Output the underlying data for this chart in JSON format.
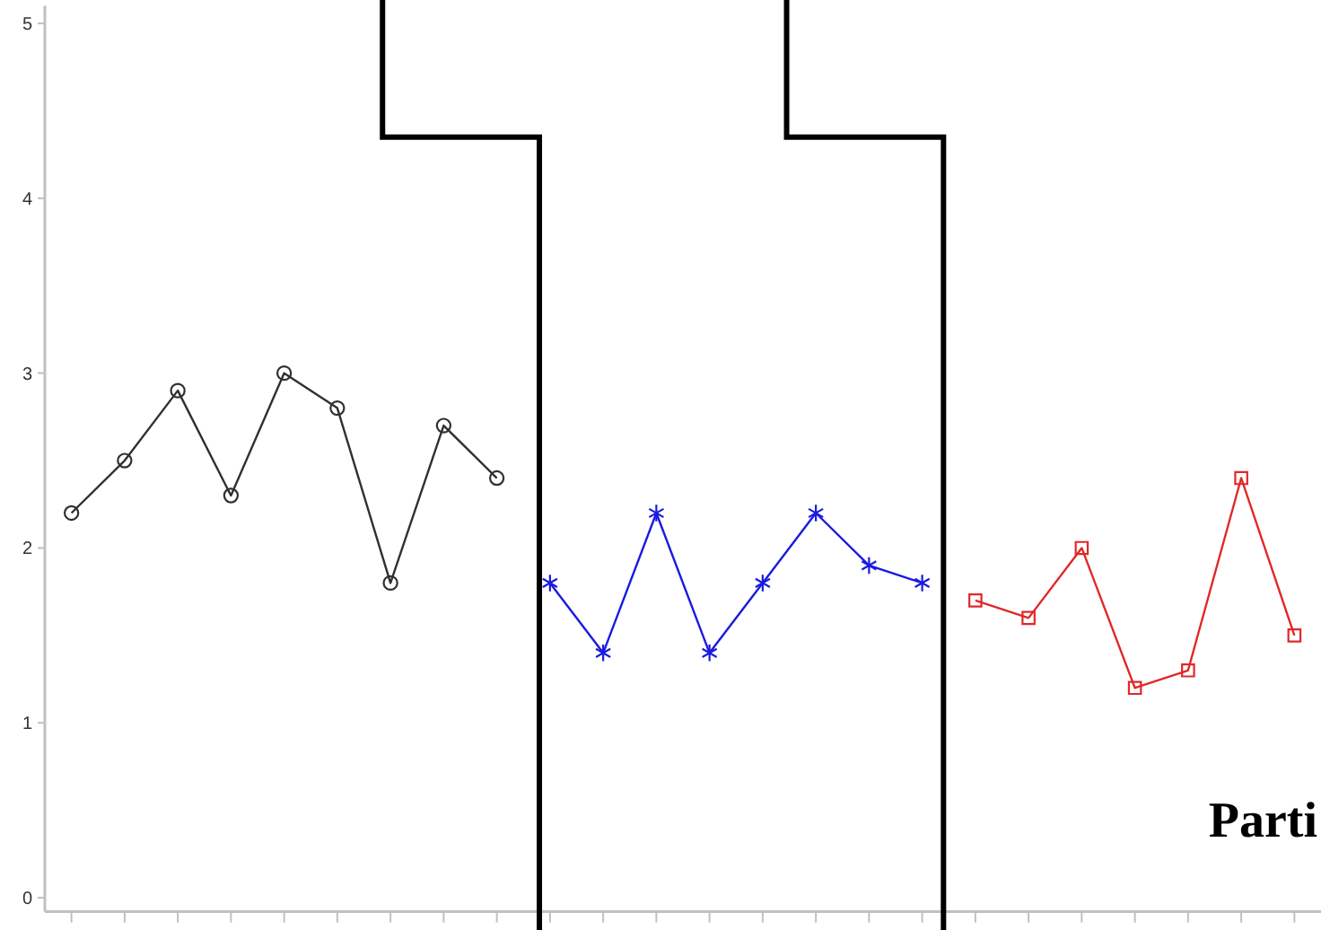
{
  "chart_data": {
    "type": "line",
    "categories": [
      null,
      null,
      null,
      null,
      null,
      null,
      null,
      null,
      null,
      null,
      null,
      null,
      null,
      null,
      null,
      null,
      null,
      null,
      null,
      null,
      null,
      null,
      null,
      null
    ],
    "ylim": [
      -0.08,
      5.1
    ],
    "yticks": [
      0,
      1,
      2,
      3,
      4,
      5
    ],
    "series": [
      {
        "color": "#303030",
        "marker": "circle",
        "values": [
          2.2,
          2.5,
          2.9,
          2.3,
          3.0,
          2.8,
          1.8,
          2.7,
          2.4,
          null,
          null,
          null,
          null,
          null,
          null,
          null,
          null,
          null,
          null,
          null,
          null,
          null,
          null,
          null
        ]
      },
      {
        "color": "#1a1ae0",
        "marker": "cross",
        "values": [
          null,
          null,
          null,
          null,
          null,
          null,
          null,
          null,
          null,
          1.8,
          1.4,
          2.2,
          1.4,
          1.8,
          2.2,
          1.9,
          1.8,
          null,
          null,
          null,
          null,
          null,
          null,
          null
        ]
      },
      {
        "color": "#e02828",
        "marker": "square",
        "values": [
          null,
          null,
          null,
          null,
          null,
          null,
          null,
          null,
          null,
          null,
          null,
          null,
          null,
          null,
          null,
          null,
          null,
          1.7,
          1.6,
          2.0,
          1.2,
          1.3,
          2.4,
          1.5
        ]
      }
    ],
    "annotations": [
      "Parti"
    ]
  }
}
